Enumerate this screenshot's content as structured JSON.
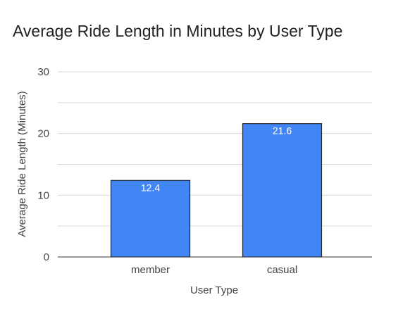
{
  "chart_data": {
    "type": "bar",
    "title": "Average Ride Length in Minutes by User Type",
    "xlabel": "User Type",
    "ylabel": "Average Ride Length (Minutes)",
    "categories": [
      "member",
      "casual"
    ],
    "values": [
      12.4,
      21.6
    ],
    "value_labels": [
      "12.4",
      "21.6"
    ],
    "ylim": [
      0,
      30
    ],
    "yticks": [
      0,
      10,
      20,
      30
    ],
    "ytick_labels": [
      "0",
      "10",
      "20",
      "30"
    ],
    "minor_gridlines": [
      5,
      15,
      25
    ],
    "grid": true,
    "legend": "none",
    "bar_color": "#4285f4",
    "bar_outline_color": "#1f2733"
  }
}
